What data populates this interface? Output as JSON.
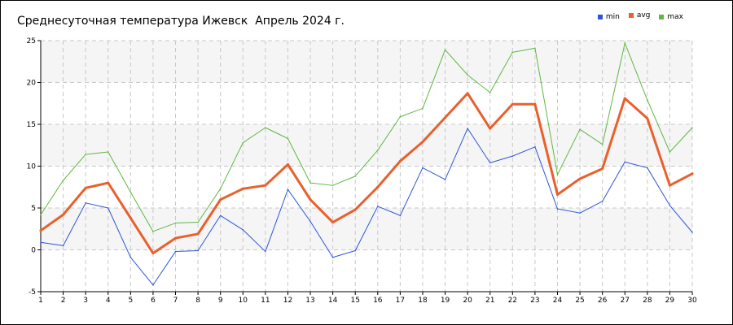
{
  "chart_data": {
    "type": "line",
    "title": "Среднесуточная температура Ижевск  Апрель 2024 г.",
    "xlabel": "",
    "ylabel": "",
    "x": [
      1,
      2,
      3,
      4,
      5,
      6,
      7,
      8,
      9,
      10,
      11,
      12,
      13,
      14,
      15,
      16,
      17,
      18,
      19,
      20,
      21,
      22,
      23,
      24,
      25,
      26,
      27,
      28,
      29,
      30
    ],
    "xlim": [
      1,
      30
    ],
    "ylim": [
      -5,
      25
    ],
    "y_ticks": [
      -5,
      0,
      5,
      10,
      15,
      20,
      25
    ],
    "grid": true,
    "legend_position": "top-right",
    "series": [
      {
        "name": "min",
        "color": "#2f55d8",
        "values": [
          0.9,
          0.5,
          5.6,
          5.0,
          -0.9,
          -4.2,
          -0.2,
          -0.1,
          4.1,
          2.4,
          -0.2,
          7.2,
          3.4,
          -0.9,
          -0.1,
          5.2,
          4.1,
          9.8,
          8.4,
          14.5,
          10.4,
          11.2,
          12.3,
          4.9,
          4.4,
          5.8,
          10.5,
          9.8,
          5.3,
          2.1
        ]
      },
      {
        "name": "avg",
        "color": "#e8602c",
        "values": [
          2.3,
          4.2,
          7.4,
          8.0,
          3.8,
          -0.4,
          1.4,
          1.9,
          6.0,
          7.3,
          7.7,
          10.2,
          6.0,
          3.3,
          4.8,
          7.5,
          10.6,
          12.9,
          15.8,
          18.7,
          14.5,
          17.4,
          17.4,
          6.6,
          8.5,
          9.7,
          18.1,
          15.7,
          7.7,
          9.1
        ]
      },
      {
        "name": "max",
        "color": "#5fb840",
        "values": [
          4.2,
          8.3,
          11.4,
          11.7,
          6.9,
          2.2,
          3.2,
          3.3,
          7.3,
          12.8,
          14.6,
          13.3,
          8.0,
          7.7,
          8.8,
          11.9,
          15.9,
          16.9,
          23.9,
          20.9,
          18.8,
          23.6,
          24.1,
          9.0,
          14.4,
          12.6,
          24.7,
          17.9,
          11.7,
          14.6
        ]
      }
    ]
  }
}
